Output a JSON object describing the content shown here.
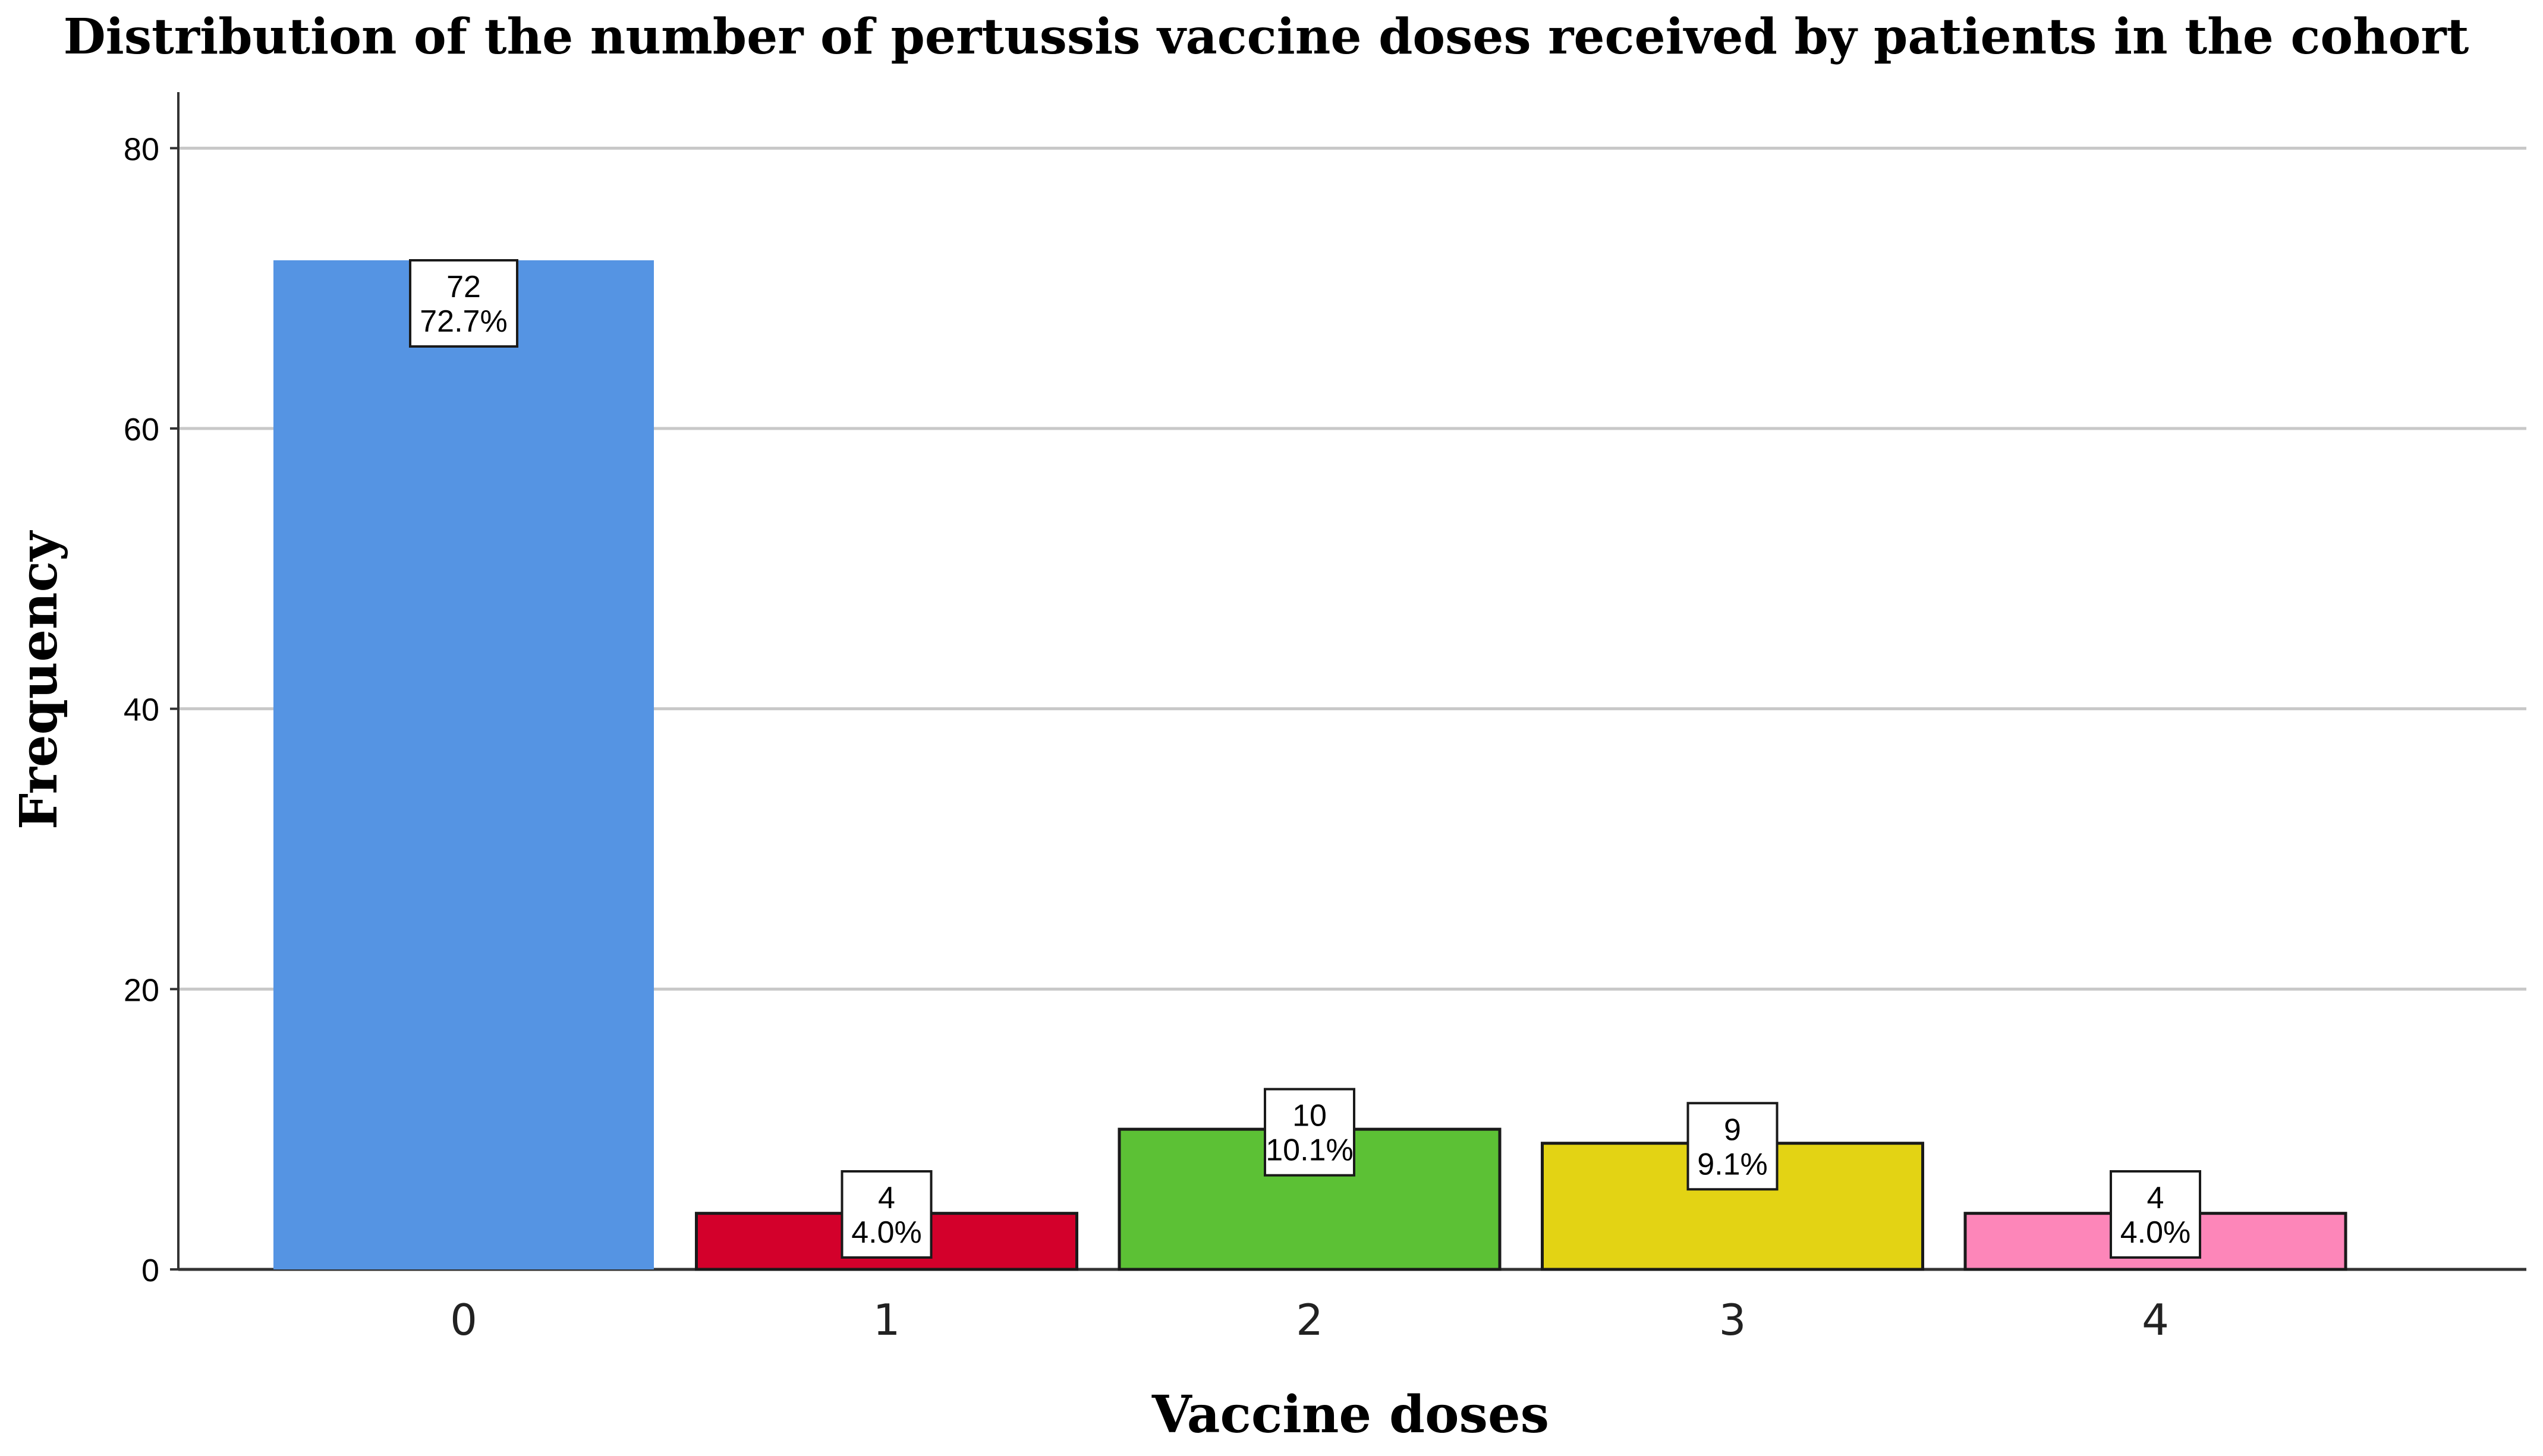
{
  "chart_data": {
    "type": "bar",
    "title": "Distribution of the number of pertussis vaccine doses received by patients in the cohort",
    "xlabel": "Vaccine doses",
    "ylabel": "Frequency",
    "categories": [
      "0",
      "1",
      "2",
      "3",
      "4"
    ],
    "values": [
      72,
      4,
      10,
      9,
      4
    ],
    "percent_labels": [
      "72.7%",
      "4.0%",
      "10.1%",
      "9.1%",
      "4.0%"
    ],
    "bar_colors": [
      "#5594e3",
      "#d3002b",
      "#5cc135",
      "#e3d314",
      "#fd86b9"
    ],
    "ylim": [
      0,
      84
    ],
    "yticks": [
      0,
      20,
      40,
      60,
      80
    ],
    "grid": true,
    "legend": "none"
  }
}
